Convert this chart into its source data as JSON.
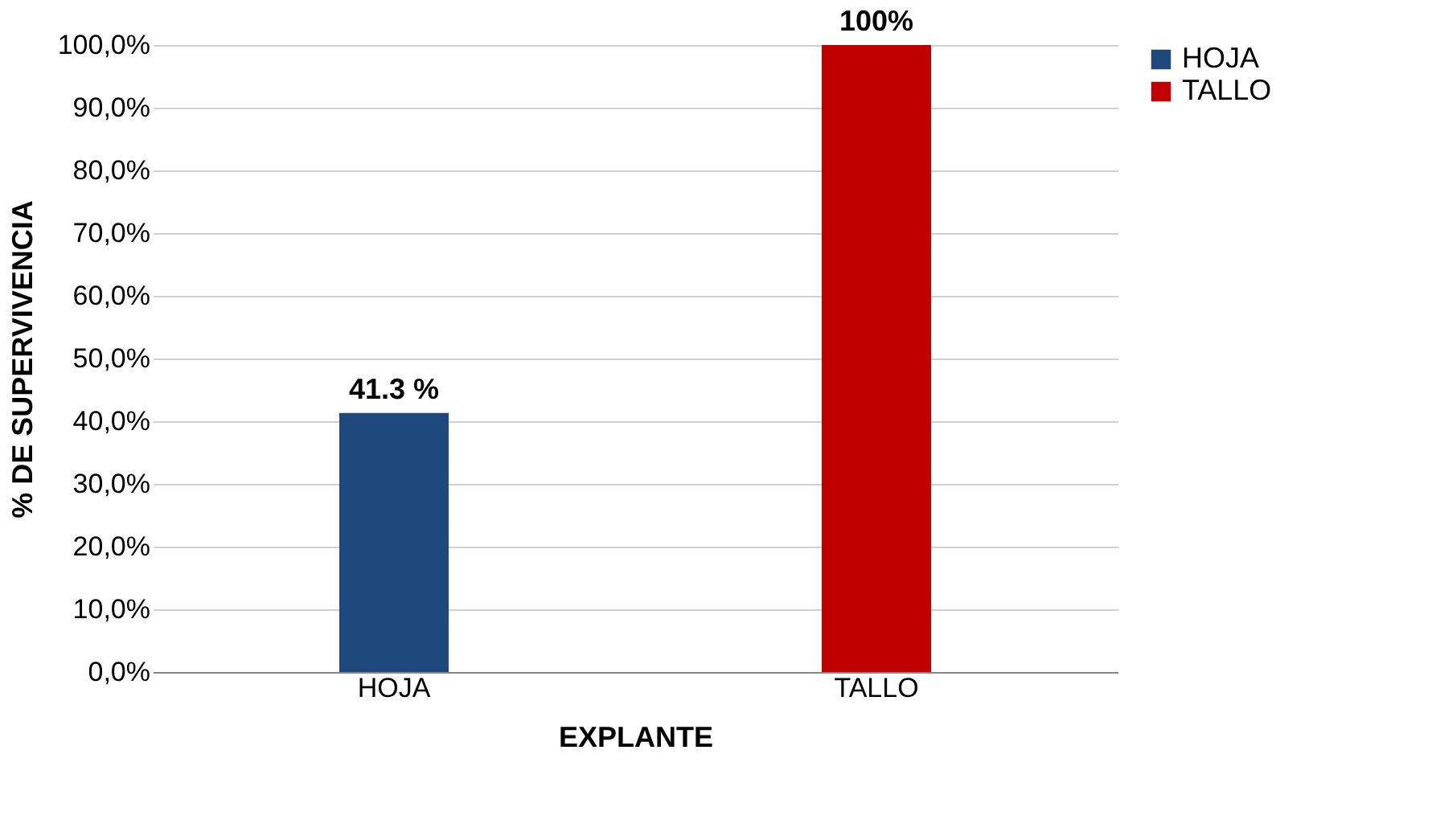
{
  "chart_data": {
    "type": "bar",
    "xlabel": "EXPLANTE",
    "ylabel": "% DE SUPERVIVENCIA",
    "categories": [
      "HOJA",
      "TALLO"
    ],
    "series": [
      {
        "name": "HOJA",
        "color": "#1f497d",
        "values": [
          41.3,
          null
        ],
        "value_labels": [
          "41.3 %",
          null
        ]
      },
      {
        "name": "TALLO",
        "color": "#c00000",
        "values": [
          null,
          100
        ],
        "value_labels": [
          null,
          "100%"
        ]
      }
    ],
    "ylim": [
      0,
      100
    ],
    "yticks": [
      {
        "value": 0,
        "label": "0,0%"
      },
      {
        "value": 10,
        "label": "10,0%"
      },
      {
        "value": 20,
        "label": "20,0%"
      },
      {
        "value": 30,
        "label": "30,0%"
      },
      {
        "value": 40,
        "label": "40,0%"
      },
      {
        "value": 50,
        "label": "50,0%"
      },
      {
        "value": 60,
        "label": "60,0%"
      },
      {
        "value": 70,
        "label": "70,0%"
      },
      {
        "value": 80,
        "label": "80,0%"
      },
      {
        "value": 90,
        "label": "90,0%"
      },
      {
        "value": 100,
        "label": "100,0%"
      }
    ],
    "grid": "y",
    "legend": "right"
  }
}
